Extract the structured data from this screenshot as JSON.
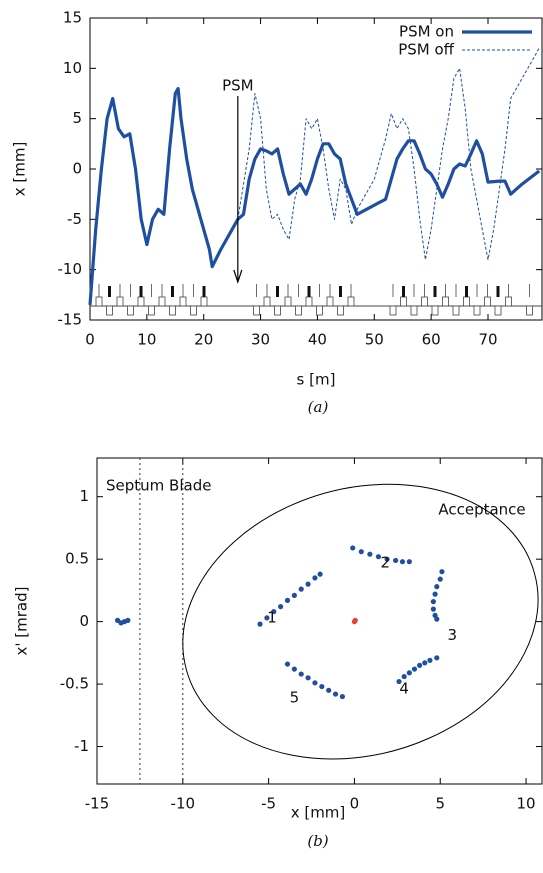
{
  "chart_data": [
    {
      "type": "line",
      "xlabel": "s [m]",
      "ylabel": "x [mm]",
      "caption": "(a)",
      "xlim": [
        0,
        79.5
      ],
      "ylim": [
        -15,
        15
      ],
      "xticks": [
        0,
        10,
        20,
        30,
        40,
        50,
        60,
        70
      ],
      "yticks": [
        -15,
        -10,
        -5,
        0,
        5,
        10,
        15
      ],
      "legend": "top right",
      "annotation": {
        "text": "PSM",
        "x": 26
      },
      "series": [
        {
          "name": "PSM on",
          "color": "#1f4fa0",
          "style": "solid",
          "x": [
            0,
            1,
            2,
            3,
            4,
            5,
            6,
            7,
            8,
            9,
            10,
            11,
            12,
            13,
            14,
            15,
            15.5,
            16,
            17,
            18,
            19,
            20,
            21,
            21.5,
            23,
            26,
            27,
            28,
            29,
            30,
            31,
            32,
            33,
            34,
            35,
            36,
            37,
            38,
            39,
            40,
            41,
            42,
            43,
            44,
            45,
            46,
            47,
            52,
            53,
            54,
            55,
            56,
            57,
            58,
            59,
            60,
            61,
            62,
            63,
            64,
            65,
            66,
            67,
            68,
            69,
            70,
            72,
            73,
            74,
            76,
            79
          ],
          "values": [
            -13.5,
            -6,
            0,
            5,
            7,
            4,
            3.2,
            3.5,
            0,
            -5,
            -7.5,
            -5,
            -4,
            -4.5,
            2,
            7.5,
            8,
            5,
            1,
            -2,
            -4,
            -6,
            -8,
            -9.7,
            -8,
            -5,
            -4.5,
            -1,
            1,
            2,
            1.8,
            1.5,
            2,
            -0.5,
            -2.5,
            -2,
            -1.5,
            -2.5,
            -1,
            1,
            2.5,
            2.5,
            1.5,
            1,
            -1.5,
            -3,
            -4.5,
            -3,
            -1,
            1,
            2,
            2.8,
            2.8,
            1.5,
            0,
            -0.5,
            -1.5,
            -2.8,
            -1.5,
            0,
            0.5,
            0.3,
            1.5,
            2.8,
            1.5,
            -1.3,
            -1.2,
            -1.2,
            -2.5,
            -1.5,
            -0.2
          ]
        },
        {
          "name": "PSM off",
          "color": "#1f4fa0",
          "style": "dashed",
          "x": [
            26,
            28,
            29,
            30,
            31,
            32,
            33,
            34,
            35,
            36,
            37,
            38,
            39,
            40,
            41,
            42,
            43,
            44,
            45,
            46,
            47,
            48,
            50,
            52,
            53,
            54,
            55,
            56,
            57,
            58,
            59,
            60,
            61,
            62,
            63,
            64,
            65,
            66,
            67,
            68,
            69,
            70,
            71,
            72,
            73,
            74,
            76,
            79
          ],
          "values": [
            -5,
            2,
            7.5,
            5,
            -2,
            -5,
            -4.5,
            -6,
            -7,
            -3,
            -1,
            5,
            4,
            5,
            2,
            -2,
            -5,
            -1,
            -2,
            -5.5,
            -4,
            -3,
            -1,
            3,
            5.5,
            4,
            5,
            4,
            0,
            -5,
            -9,
            -6,
            -2,
            2,
            5,
            9,
            10,
            6,
            0,
            -3,
            -6,
            -9,
            -6,
            -2,
            2,
            7,
            9,
            12
          ]
        }
      ]
    },
    {
      "type": "scatter",
      "xlabel": "x [mm]",
      "ylabel": "x' [mrad]",
      "caption": "(b)",
      "xlim": [
        -15,
        10.93
      ],
      "ylim": [
        -1.3,
        1.31
      ],
      "xticks": [
        -15,
        -10,
        -5,
        0,
        5,
        10
      ],
      "yticks": [
        -1,
        -0.5,
        0,
        0.5,
        1
      ],
      "septum_blade": {
        "label": "Septum Blade",
        "x": [
          -12.5,
          -10
        ]
      },
      "acceptance": {
        "label": "Acceptance",
        "x": [
          10.7,
          9.91,
          7.67,
          4.31,
          0.35,
          -3.61,
          -6.97,
          -9.21,
          -10.0,
          -9.21,
          -6.97,
          -3.61,
          0.35,
          4.31,
          7.67,
          9.91
        ],
        "values": [
          0.176,
          0.578,
          0.892,
          1.07,
          1.086,
          0.936,
          0.644,
          0.253,
          -0.176,
          -0.578,
          -0.892,
          -1.07,
          -1.086,
          -0.936,
          -0.644,
          -0.253
        ]
      },
      "annotations": [
        {
          "text": "1",
          "x": -4.8,
          "y": 0.03
        },
        {
          "text": "2",
          "x": 1.8,
          "y": 0.47
        },
        {
          "text": "3",
          "x": 5.7,
          "y": -0.11
        },
        {
          "text": "4",
          "x": 2.9,
          "y": -0.54
        },
        {
          "text": "5",
          "x": -3.5,
          "y": -0.61
        }
      ],
      "series": [
        {
          "color": "#1f4fa0",
          "x": [
            -5.5,
            -5.1,
            -4.7,
            -4.3,
            -3.9,
            -3.5,
            -3.1,
            -2.7,
            -2.3,
            -2.0
          ],
          "values": [
            -0.02,
            0.03,
            0.08,
            0.12,
            0.17,
            0.21,
            0.26,
            0.3,
            0.35,
            0.38
          ]
        },
        {
          "color": "#1f4fa0",
          "x": [
            -0.1,
            0.4,
            0.9,
            1.4,
            1.9,
            2.4,
            2.8,
            3.2
          ],
          "values": [
            0.59,
            0.56,
            0.54,
            0.52,
            0.5,
            0.49,
            0.48,
            0.48
          ]
        },
        {
          "color": "#1f4fa0",
          "x": [
            5.1,
            5.0,
            4.8,
            4.7,
            4.6,
            4.6,
            4.7,
            4.8
          ],
          "values": [
            0.4,
            0.34,
            0.28,
            0.22,
            0.16,
            0.1,
            0.05,
            0.02
          ]
        },
        {
          "color": "#1f4fa0",
          "x": [
            2.6,
            2.9,
            3.2,
            3.5,
            3.8,
            4.1,
            4.4,
            4.8
          ],
          "values": [
            -0.48,
            -0.44,
            -0.41,
            -0.38,
            -0.35,
            -0.33,
            -0.31,
            -0.29
          ]
        },
        {
          "color": "#1f4fa0",
          "x": [
            -3.9,
            -3.5,
            -3.1,
            -2.7,
            -2.3,
            -1.9,
            -1.5,
            -1.1,
            -0.7
          ],
          "values": [
            -0.34,
            -0.38,
            -0.42,
            -0.45,
            -0.49,
            -0.52,
            -0.55,
            -0.58,
            -0.6
          ]
        },
        {
          "color": "#1f4fa0",
          "x": [
            -13.8,
            -13.6,
            -13.4,
            -13.2
          ],
          "values": [
            0.01,
            -0.01,
            0.0,
            0.01
          ]
        },
        {
          "color": "#e8452c",
          "x": [
            0,
            0.05
          ],
          "values": [
            0.0,
            0.01
          ]
        }
      ]
    }
  ]
}
